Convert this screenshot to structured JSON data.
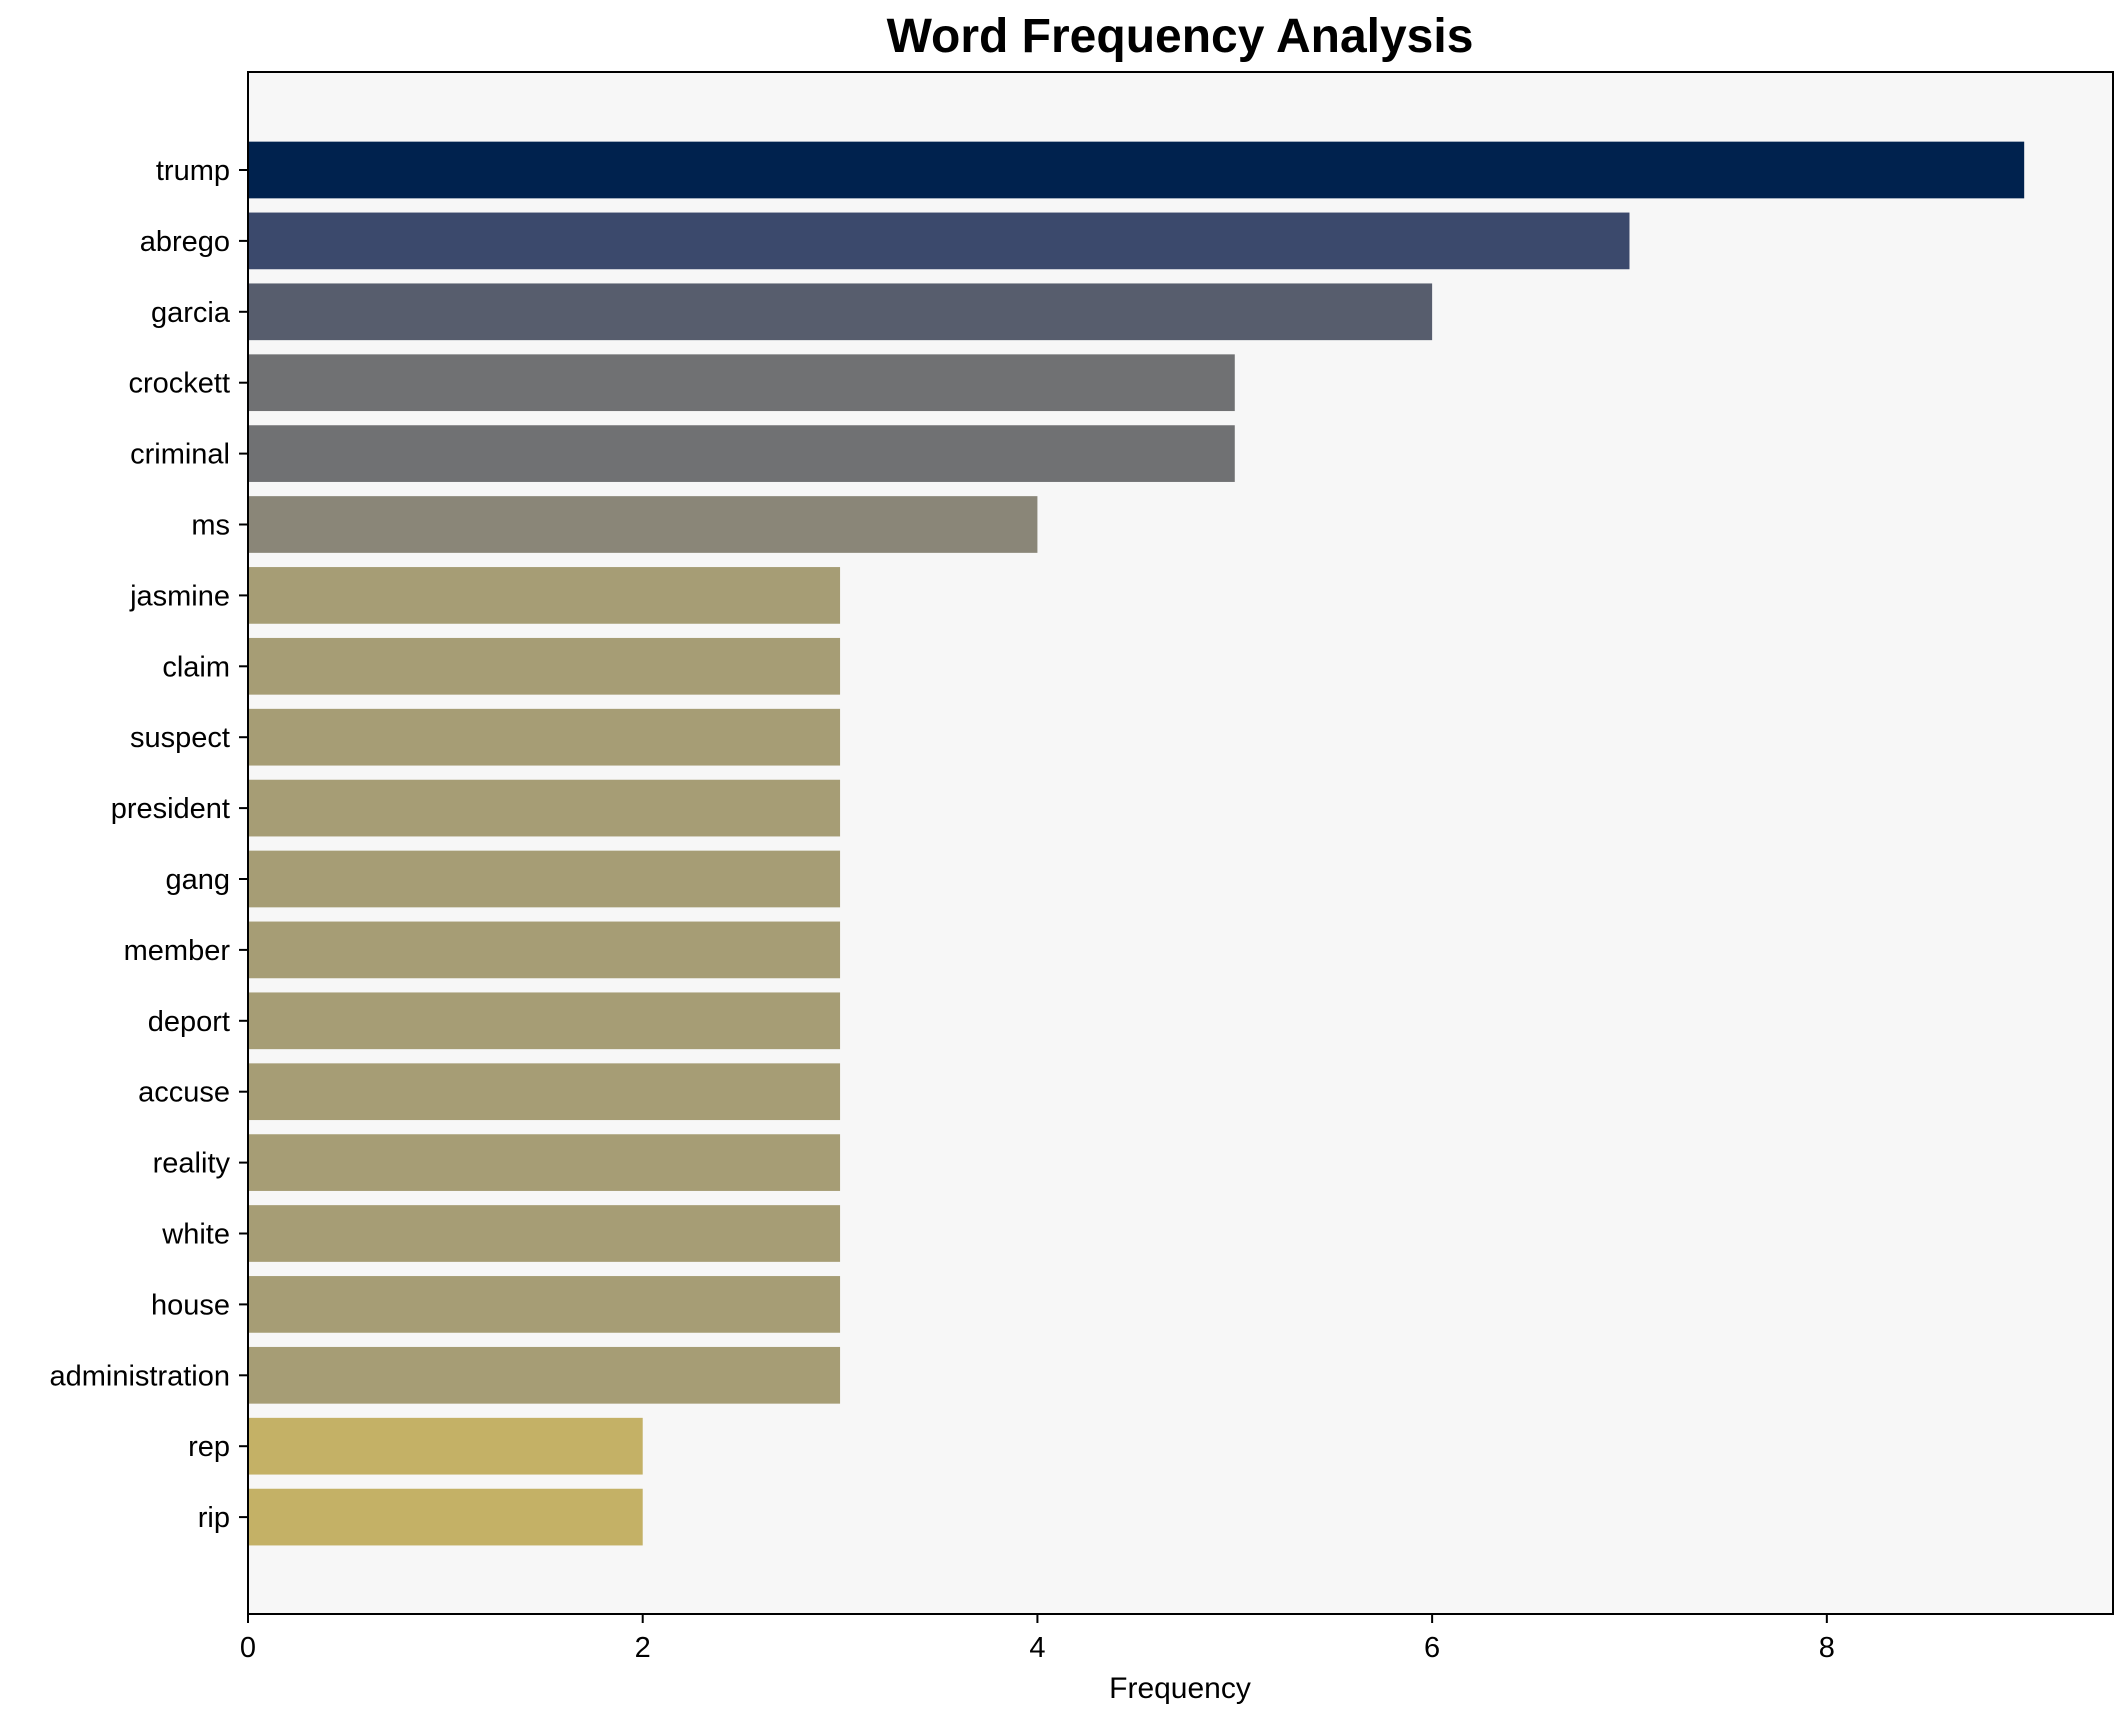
{
  "chart_data": {
    "type": "bar",
    "orientation": "horizontal",
    "title": "Word Frequency Analysis",
    "xlabel": "Frequency",
    "ylabel": "",
    "xlim": [
      0,
      9.45
    ],
    "xticks": [
      0,
      2,
      4,
      6,
      8
    ],
    "grid": false,
    "background_color": "#f7f7f7",
    "categories": [
      "trump",
      "abrego",
      "garcia",
      "crockett",
      "criminal",
      "ms",
      "jasmine",
      "claim",
      "suspect",
      "president",
      "gang",
      "member",
      "deport",
      "accuse",
      "reality",
      "white",
      "house",
      "administration",
      "rep",
      "rip"
    ],
    "values": [
      9,
      7,
      6,
      5,
      5,
      4,
      3,
      3,
      3,
      3,
      3,
      3,
      3,
      3,
      3,
      3,
      3,
      3,
      2,
      2
    ],
    "colors": [
      "#00224e",
      "#3b496c",
      "#575d6d",
      "#707173",
      "#707173",
      "#8a8678",
      "#a69d75",
      "#a69d75",
      "#a69d75",
      "#a69d75",
      "#a69d75",
      "#a69d75",
      "#a69d75",
      "#a69d75",
      "#a69d75",
      "#a69d75",
      "#a69d75",
      "#a69d75",
      "#c4b166",
      "#c4b166"
    ]
  }
}
